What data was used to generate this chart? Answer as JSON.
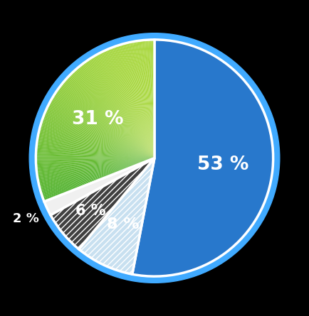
{
  "slices": [
    53,
    8,
    6,
    2,
    31
  ],
  "labels": [
    "53 %",
    "8 %",
    "6 %",
    "2 %",
    "31 %"
  ],
  "colors": [
    "#2878cc",
    "#c8e0f0",
    "#404040",
    "#f0f0f0",
    "#2eb835"
  ],
  "hatch": [
    null,
    "////",
    "////",
    null,
    null
  ],
  "hatch_colors": [
    null,
    "#7ab8e0",
    "#808080",
    null,
    null
  ],
  "start_angle": 90,
  "edge_color": "#ffffff",
  "edge_width": 2.5,
  "background": "#000000",
  "label_color": "#ffffff",
  "label_fontsize": 19,
  "label_fontweight": "bold",
  "green_top_color": "#aad840",
  "green_bottom_color": "#28a028",
  "border_color": "#40aaff",
  "border_width": 0.055
}
